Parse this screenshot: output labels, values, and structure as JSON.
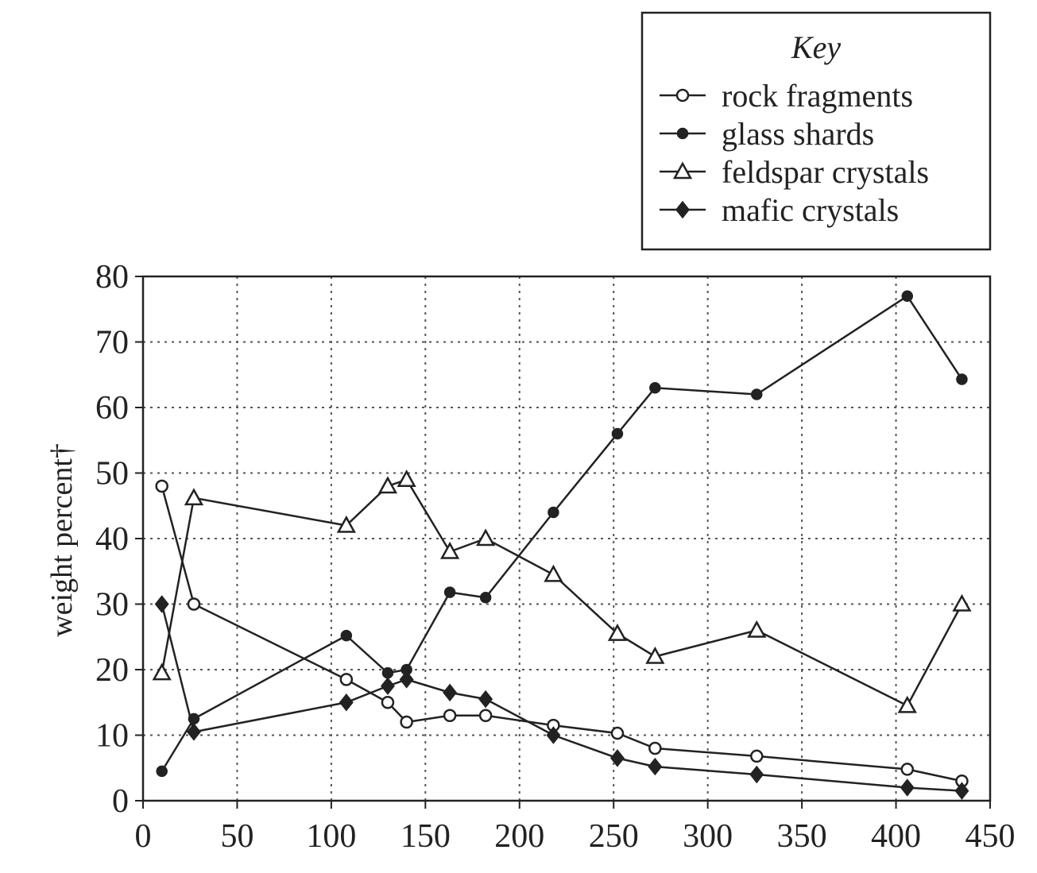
{
  "chart_data": {
    "type": "line",
    "title": "",
    "xlabel": "",
    "ylabel": "weight percent†",
    "xlim": [
      0,
      450
    ],
    "ylim": [
      0,
      80
    ],
    "x_ticks": [
      0,
      50,
      100,
      150,
      200,
      250,
      300,
      350,
      400,
      450
    ],
    "y_ticks": [
      0,
      10,
      20,
      30,
      40,
      50,
      60,
      70,
      80
    ],
    "grid": true,
    "legend": {
      "title": "Key",
      "position": "top-right"
    },
    "series": [
      {
        "name": "rock fragments",
        "marker": "open-circle",
        "x": [
          10,
          27,
          108,
          130,
          140,
          163,
          182,
          218,
          252,
          272,
          326,
          406,
          435
        ],
        "y": [
          48,
          30,
          18.5,
          15,
          12,
          13,
          13,
          11.5,
          10.3,
          8,
          6.8,
          4.8,
          3
        ]
      },
      {
        "name": "glass shards",
        "marker": "filled-circle",
        "x": [
          10,
          27,
          108,
          130,
          140,
          163,
          182,
          218,
          252,
          272,
          326,
          406,
          435
        ],
        "y": [
          4.5,
          12.5,
          25.2,
          19.5,
          20,
          31.8,
          31,
          44,
          56,
          63,
          62,
          77,
          64.3
        ]
      },
      {
        "name": "feldspar crystals",
        "marker": "open-triangle",
        "x": [
          10,
          27,
          108,
          130,
          140,
          163,
          182,
          218,
          252,
          272,
          326,
          406,
          435
        ],
        "y": [
          19.5,
          46.2,
          42,
          48,
          49,
          38,
          40,
          34.5,
          25.5,
          22,
          26,
          14.5,
          30
        ]
      },
      {
        "name": "mafic crystals",
        "marker": "filled-diamond",
        "x": [
          10,
          27,
          108,
          130,
          140,
          163,
          182,
          218,
          252,
          272,
          326,
          406,
          435
        ],
        "y": [
          30,
          10.5,
          15,
          17.5,
          18.5,
          16.5,
          15.5,
          10,
          6.5,
          5.2,
          4,
          2,
          1.5
        ]
      }
    ]
  }
}
